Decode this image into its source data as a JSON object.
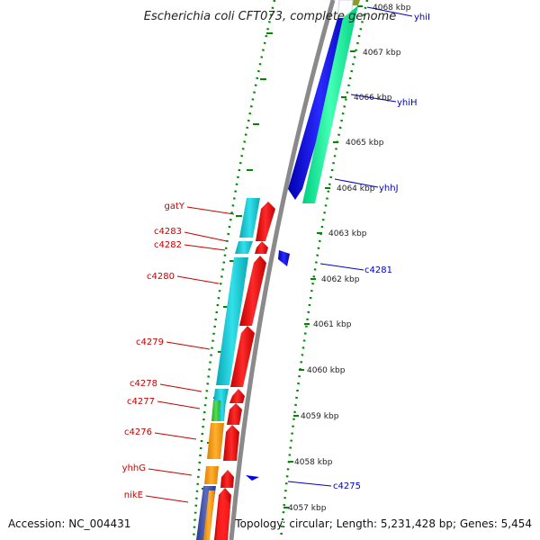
{
  "title": "Escherichia coli CFT073, complete genome",
  "footer": {
    "accession": "Accession: NC_004431",
    "topology": "Topology: circular; Length: 5,231,428 bp; Genes: 5,454"
  },
  "kbp_labels": [
    "4068 kbp",
    "4067 kbp",
    "4066 kbp",
    "4065 kbp",
    "4064 kbp",
    "4063 kbp",
    "4062 kbp",
    "4061 kbp",
    "4060 kbp",
    "4059 kbp",
    "4058 kbp",
    "4057 kbp"
  ],
  "left_genes": [
    "gatY",
    "c4283",
    "c4282",
    "c4280",
    "c4279",
    "c4278",
    "c4277",
    "c4276",
    "yhhG",
    "nikE"
  ],
  "right_genes": [
    "yhiI",
    "yhiH",
    "yhhJ",
    "c4281",
    "c4275"
  ],
  "colors": {
    "forward_cds": "#ff0000",
    "reverse_cds": "#0000ff",
    "cog_cyan": "#00c8d2",
    "cog_green": "#00ff99",
    "cog_orange": "#ff9900",
    "tick_green": "#008800",
    "backbone": "#888888"
  }
}
